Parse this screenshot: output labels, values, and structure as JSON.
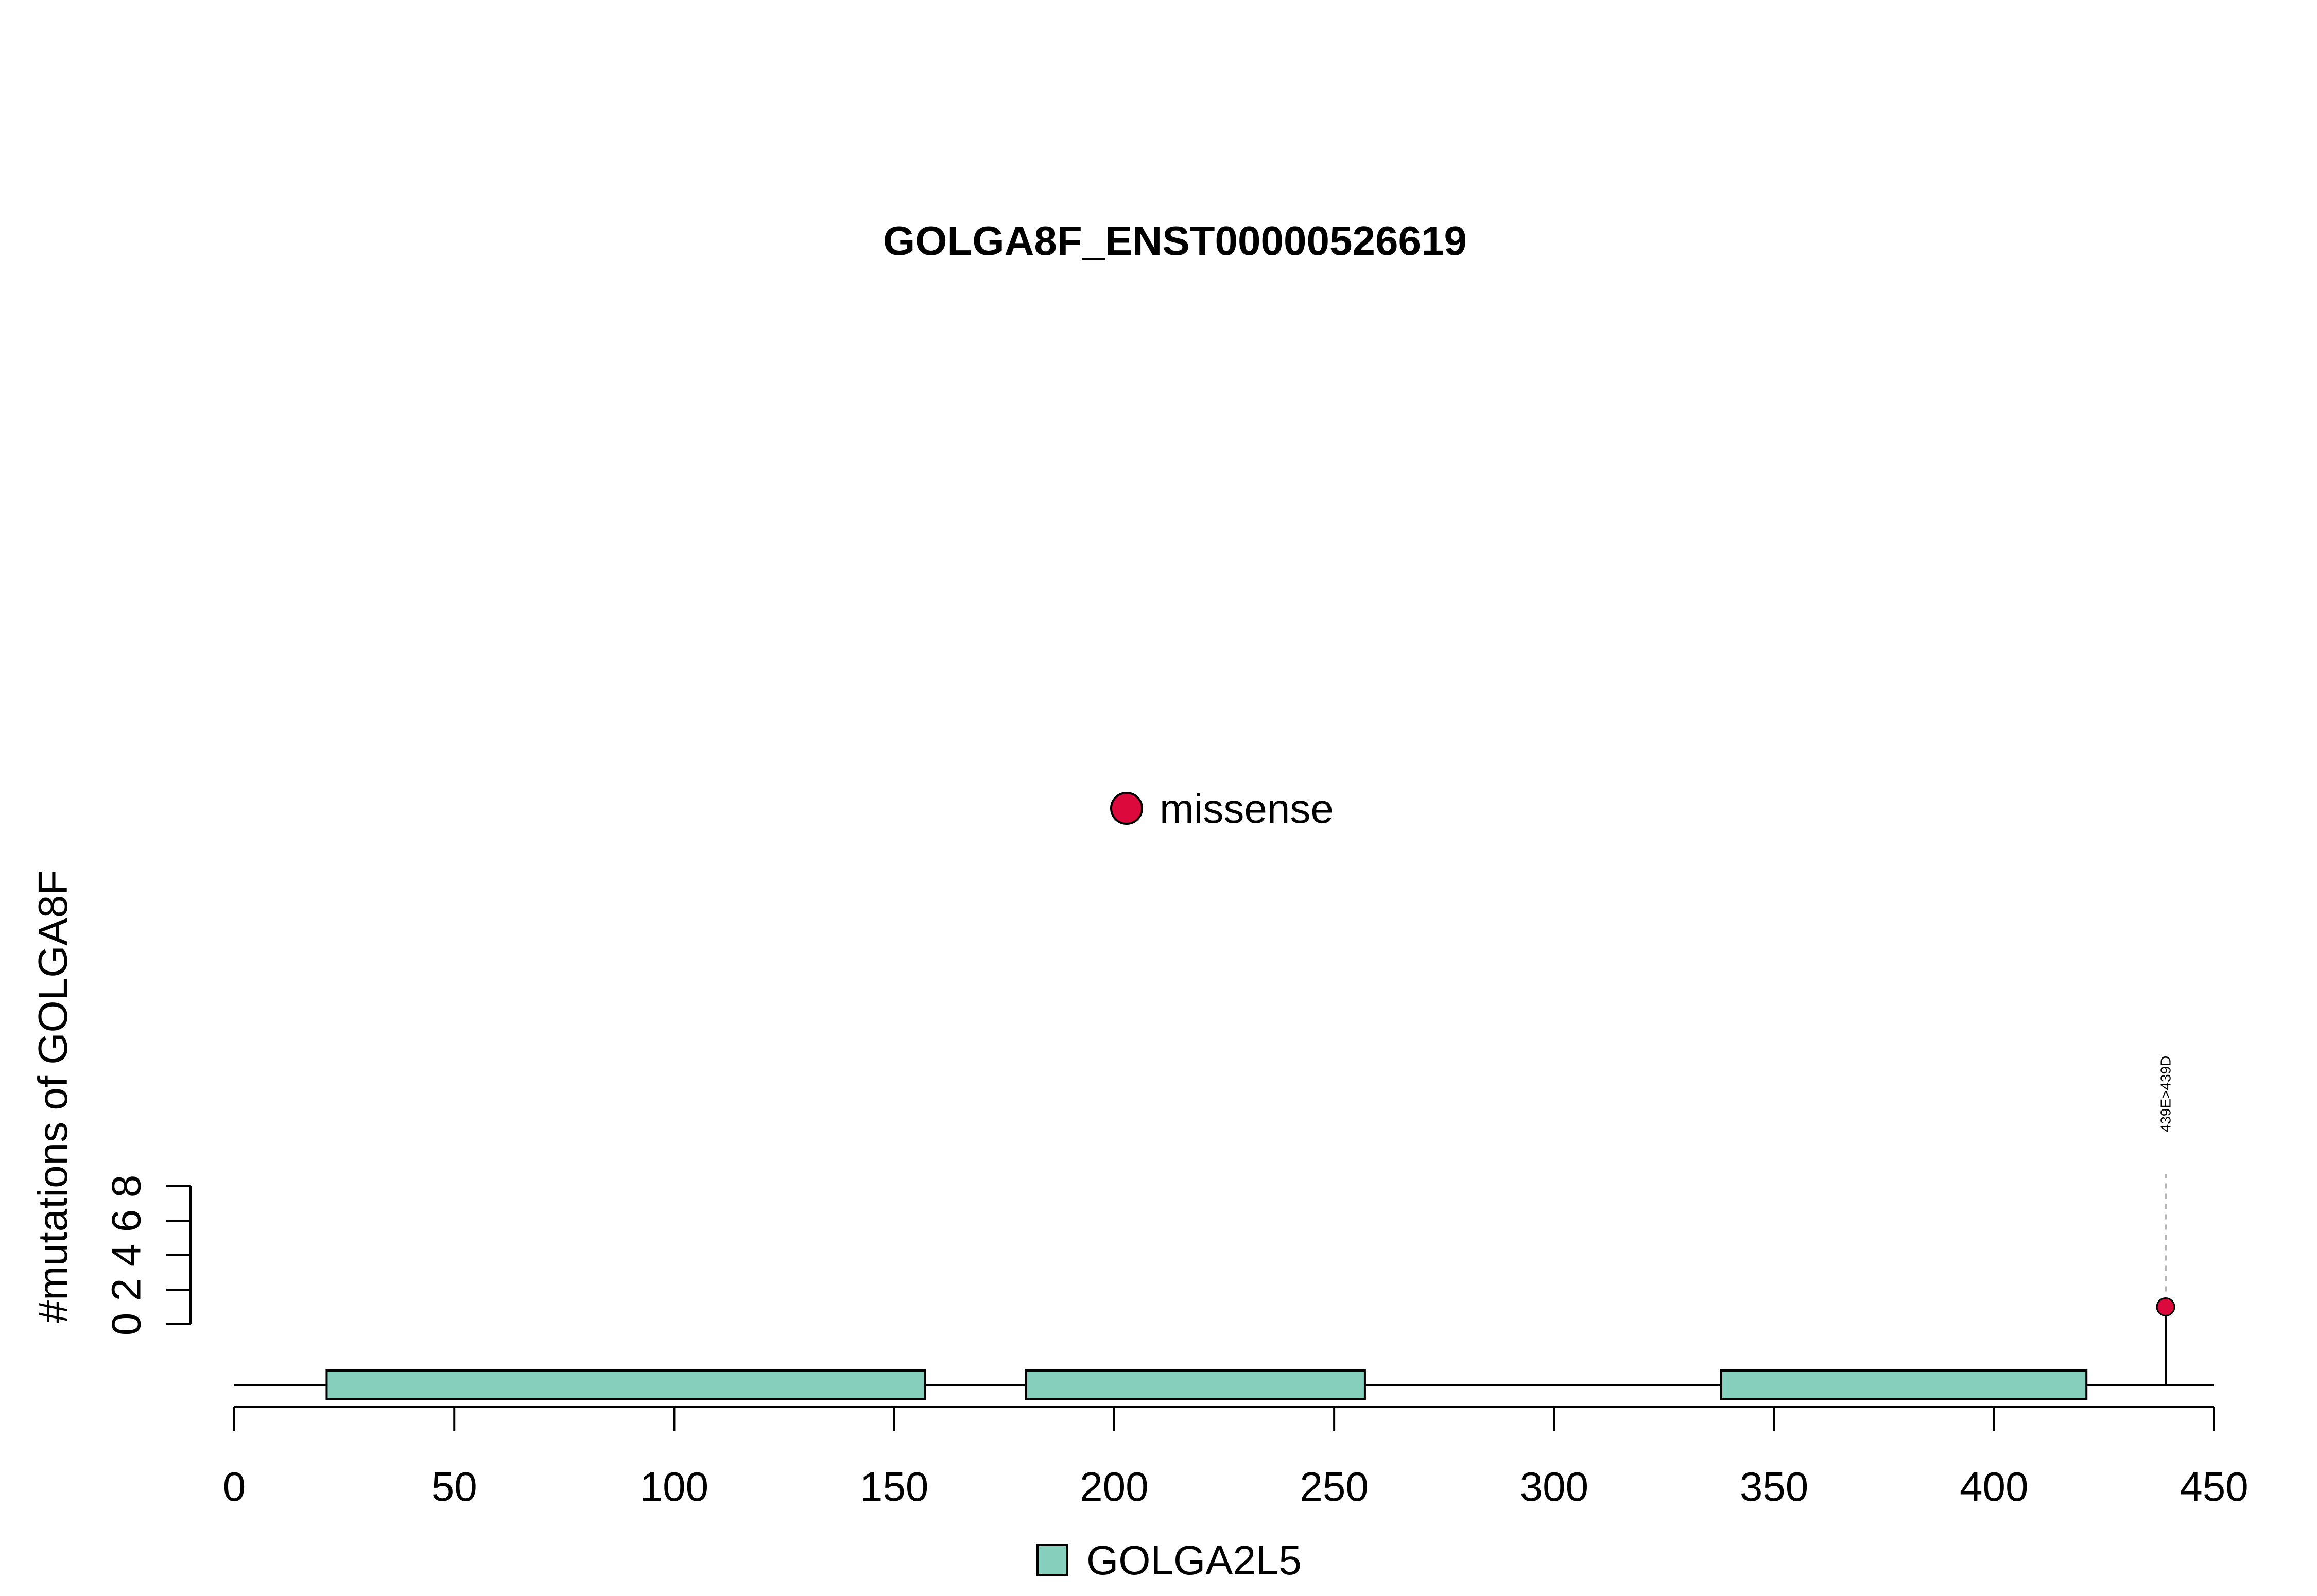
{
  "chart_data": {
    "type": "lollipop",
    "title": "GOLGA8F_ENST00000526619",
    "ylabel": "#mutations of GOLGA8F",
    "xlabel": "",
    "xlim": [
      0,
      450
    ],
    "x_ticks": [
      0,
      50,
      100,
      150,
      200,
      250,
      300,
      350,
      400,
      450
    ],
    "y_ticks": [
      0,
      2,
      4,
      6,
      8
    ],
    "ylim": [
      0,
      8
    ],
    "protein_length": 439,
    "domains": [
      {
        "name": "GOLGA2L5",
        "start": 21,
        "end": 157,
        "color": "#86cfbc"
      },
      {
        "name": "GOLGA2L5",
        "start": 180,
        "end": 257,
        "color": "#86cfbc"
      },
      {
        "name": "GOLGA2L5",
        "start": 338,
        "end": 421,
        "color": "#86cfbc"
      }
    ],
    "mutations": [
      {
        "position": 439,
        "count": 1,
        "label": "439E>439D",
        "type": "missense",
        "color": "#dc0a3c"
      }
    ],
    "legend_top": [
      {
        "label": "missense",
        "color": "#dc0a3c"
      }
    ],
    "legend_bottom": [
      {
        "label": "GOLGA2L5",
        "color": "#86cfbc"
      }
    ]
  }
}
